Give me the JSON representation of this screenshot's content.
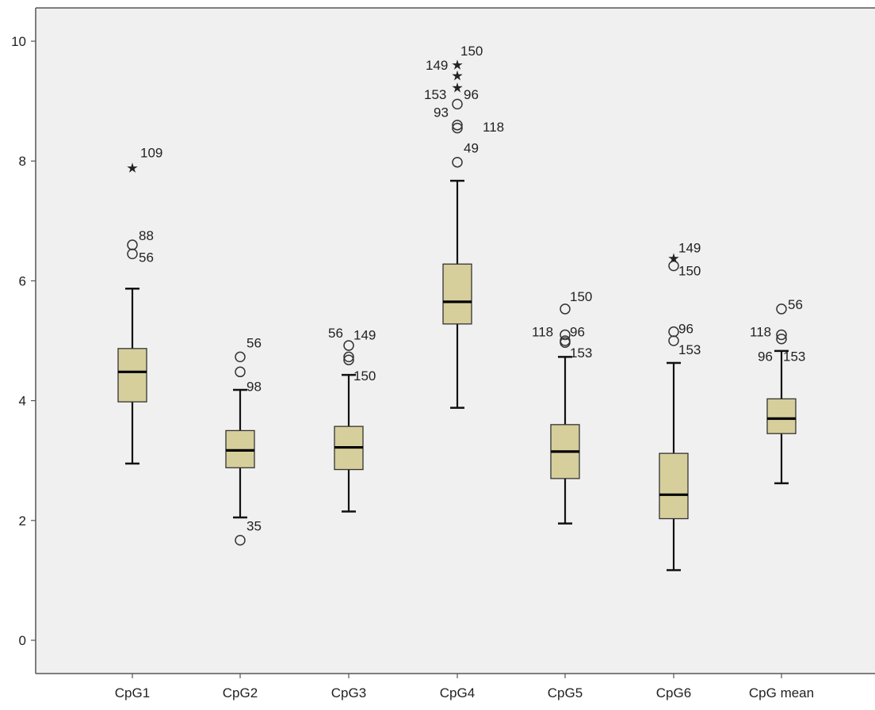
{
  "chart_data": {
    "type": "boxplot",
    "title": "",
    "xlabel": "",
    "ylabel": "",
    "ylim": [
      -0.5,
      10.5
    ],
    "yticks": [
      0,
      2,
      4,
      6,
      8,
      10
    ],
    "grid": false,
    "colors": {
      "plot_background": "#f0f0f0",
      "box_fill": "#d6cf9c",
      "box_stroke": "#333333",
      "axis": "#555555"
    },
    "categories": [
      "CpG1",
      "CpG2",
      "CpG3",
      "CpG4",
      "CpG5",
      "CpG6",
      "CpG mean"
    ],
    "boxes": [
      {
        "category": "CpG1",
        "whisker_low": 2.95,
        "q1": 3.98,
        "median": 4.48,
        "q3": 4.87,
        "whisker_high": 5.87,
        "outliers": [
          {
            "value": 6.6,
            "label": "88",
            "kind": "circle"
          },
          {
            "value": 6.45,
            "label": "56",
            "kind": "circle"
          }
        ],
        "extremes": [
          {
            "value": 7.88,
            "label": "109",
            "kind": "star"
          }
        ]
      },
      {
        "category": "CpG2",
        "whisker_low": 2.05,
        "q1": 2.88,
        "median": 3.17,
        "q3": 3.5,
        "whisker_high": 4.18,
        "outliers": [
          {
            "value": 4.73,
            "label": "56",
            "kind": "circle"
          },
          {
            "value": 4.48,
            "label": "98",
            "kind": "circle"
          },
          {
            "value": 1.67,
            "label": "35",
            "kind": "circle"
          }
        ],
        "extremes": []
      },
      {
        "category": "CpG3",
        "whisker_low": 2.15,
        "q1": 2.85,
        "median": 3.22,
        "q3": 3.57,
        "whisker_high": 4.43,
        "outliers": [
          {
            "value": 4.92,
            "label": "56",
            "kind": "circle"
          },
          {
            "value": 4.73,
            "label": "149",
            "kind": "circle"
          },
          {
            "value": 4.68,
            "label": "150",
            "kind": "circle"
          }
        ],
        "extremes": []
      },
      {
        "category": "CpG4",
        "whisker_low": 3.88,
        "q1": 5.28,
        "median": 5.65,
        "q3": 6.28,
        "whisker_high": 7.67,
        "outliers": [
          {
            "value": 8.95,
            "label": "93",
            "kind": "circle"
          },
          {
            "value": 8.6,
            "label": "118",
            "kind": "circle"
          },
          {
            "value": 8.55,
            "label": "",
            "kind": "circle"
          },
          {
            "value": 7.98,
            "label": "49",
            "kind": "circle"
          }
        ],
        "extremes": [
          {
            "value": 9.6,
            "label": "150",
            "kind": "star"
          },
          {
            "value": 9.42,
            "label": "149",
            "kind": "star"
          },
          {
            "value": 9.22,
            "label": "153",
            "kind": "star"
          },
          {
            "value": 9.22,
            "label": "96",
            "kind": "none"
          }
        ]
      },
      {
        "category": "CpG5",
        "whisker_low": 1.95,
        "q1": 2.7,
        "median": 3.15,
        "q3": 3.6,
        "whisker_high": 4.73,
        "outliers": [
          {
            "value": 5.53,
            "label": "150",
            "kind": "circle"
          },
          {
            "value": 5.1,
            "label": "118",
            "kind": "circle"
          },
          {
            "value": 5.1,
            "label": "96",
            "kind": "none"
          },
          {
            "value": 5.0,
            "label": "153",
            "kind": "circle"
          },
          {
            "value": 4.97,
            "label": "",
            "kind": "circle"
          }
        ],
        "extremes": []
      },
      {
        "category": "CpG6",
        "whisker_low": 1.17,
        "q1": 2.03,
        "median": 2.43,
        "q3": 3.12,
        "whisker_high": 4.63,
        "outliers": [
          {
            "value": 6.25,
            "label": "150",
            "kind": "circle"
          },
          {
            "value": 5.15,
            "label": "96",
            "kind": "circle"
          },
          {
            "value": 5.0,
            "label": "153",
            "kind": "circle"
          }
        ],
        "extremes": [
          {
            "value": 6.37,
            "label": "149",
            "kind": "star"
          }
        ]
      },
      {
        "category": "CpG mean",
        "whisker_low": 2.62,
        "q1": 3.45,
        "median": 3.7,
        "q3": 4.03,
        "whisker_high": 4.83,
        "outliers": [
          {
            "value": 5.53,
            "label": "56",
            "kind": "circle"
          },
          {
            "value": 5.1,
            "label": "118",
            "kind": "circle"
          },
          {
            "value": 5.03,
            "label": "96",
            "kind": "circle"
          },
          {
            "value": 5.03,
            "label": "153",
            "kind": "none"
          }
        ],
        "extremes": []
      }
    ]
  }
}
